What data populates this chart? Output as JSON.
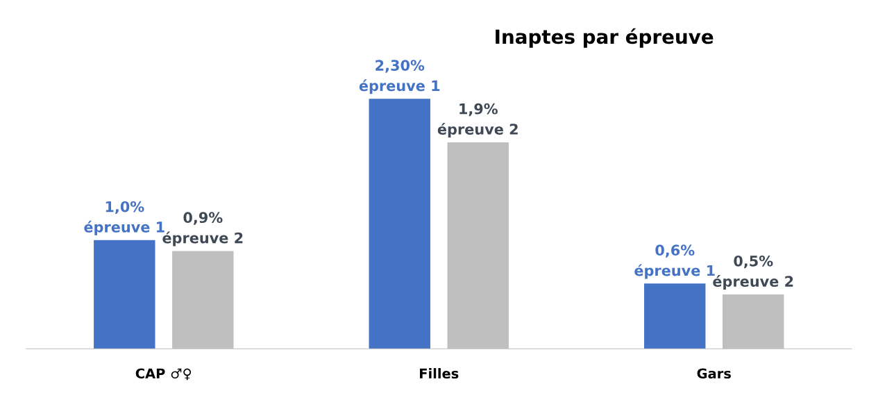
{
  "chart_data": {
    "type": "bar",
    "title": "Inaptes par épreuve",
    "categories": [
      "CAP ♂♀",
      "Filles",
      "Gars"
    ],
    "series": [
      {
        "name": "épreuve 1",
        "color": "#4472c4",
        "values": [
          1.0,
          2.3,
          0.6
        ],
        "value_labels": [
          "1,0%",
          "2,30%",
          "0,6%"
        ]
      },
      {
        "name": "épreuve 2",
        "color": "#bfbfbf",
        "values": [
          0.9,
          1.9,
          0.5
        ],
        "value_labels": [
          "0,9%",
          "1,9%",
          "0,5%"
        ]
      }
    ],
    "grid": false,
    "legend": false
  }
}
